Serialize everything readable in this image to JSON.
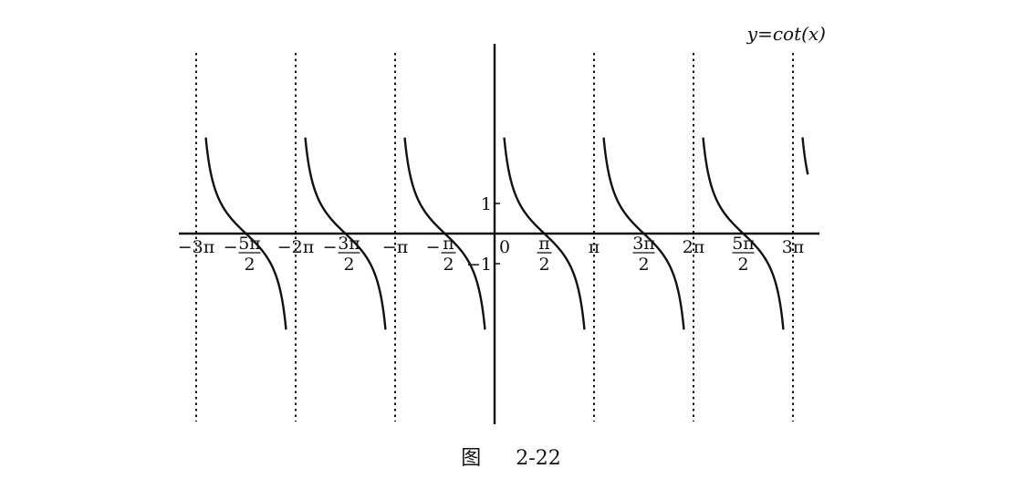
{
  "figure": {
    "caption_prefix": "图",
    "caption_number": "2-22"
  },
  "chart_data": {
    "type": "line",
    "title": "y=cot(x)",
    "function": "cot",
    "xlabel": "",
    "ylabel": "",
    "x_range_pi": [
      -3.08,
      3.15
    ],
    "y_range": [
      -3.2,
      3.2
    ],
    "asymptotes_pi": [
      -3,
      -2,
      -1,
      0,
      1,
      2,
      3
    ],
    "grid": false,
    "x_ticks": [
      {
        "value_pi": -3,
        "label": "−3π",
        "type": "simple"
      },
      {
        "value_pi": -2.5,
        "num": "5π",
        "den": "2",
        "sign": "−",
        "type": "fraction"
      },
      {
        "value_pi": -2,
        "label": "−2π",
        "type": "simple"
      },
      {
        "value_pi": -1.5,
        "num": "3π",
        "den": "2",
        "sign": "−",
        "type": "fraction"
      },
      {
        "value_pi": -1,
        "label": "−π",
        "type": "simple"
      },
      {
        "value_pi": -0.5,
        "num": "π",
        "den": "2",
        "sign": "−",
        "type": "fraction"
      },
      {
        "value_pi": 0,
        "label": "0",
        "type": "simple"
      },
      {
        "value_pi": 0.5,
        "num": "π",
        "den": "2",
        "sign": "",
        "type": "fraction"
      },
      {
        "value_pi": 1,
        "label": "π",
        "type": "simple"
      },
      {
        "value_pi": 1.5,
        "num": "3π",
        "den": "2",
        "sign": "",
        "type": "fraction"
      },
      {
        "value_pi": 2,
        "label": "2π",
        "type": "simple"
      },
      {
        "value_pi": 2.5,
        "num": "5π",
        "den": "2",
        "sign": "",
        "type": "fraction"
      },
      {
        "value_pi": 3,
        "label": "3π",
        "type": "simple"
      }
    ],
    "y_ticks": [
      {
        "value": 1,
        "label": "1"
      },
      {
        "value": -1,
        "label": "−1"
      }
    ]
  }
}
